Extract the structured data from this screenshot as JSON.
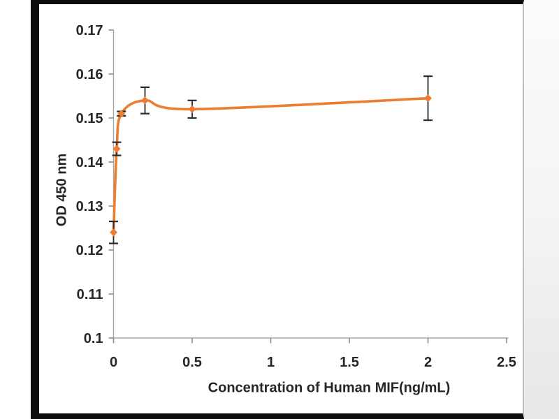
{
  "chart_data": {
    "type": "line",
    "xlabel": "Concentration of Human MIF(ng/mL)",
    "ylabel": "OD 450 nm",
    "xlim": [
      0,
      2.5
    ],
    "ylim": [
      0.1,
      0.17
    ],
    "x_ticks": [
      0,
      0.5,
      1,
      1.5,
      2,
      2.5
    ],
    "x_tick_labels": [
      "0",
      "0.5",
      "1",
      "1.5",
      "2",
      "2.5"
    ],
    "y_ticks": [
      0.1,
      0.11,
      0.12,
      0.13,
      0.14,
      0.15,
      0.16,
      0.17
    ],
    "y_tick_labels": [
      "0.1",
      "0.11",
      "0.12",
      "0.13",
      "0.14",
      "0.15",
      "0.16",
      "0.17"
    ],
    "grid": false,
    "legend": false,
    "series": [
      {
        "color": "#ED7D31",
        "marker": "diamond",
        "points": [
          {
            "x": 0,
            "y": 0.124,
            "err": 0.0025
          },
          {
            "x": 0.02,
            "y": 0.143,
            "err": 0.0015
          },
          {
            "x": 0.05,
            "y": 0.151,
            "err": 0.0005
          },
          {
            "x": 0.2,
            "y": 0.154,
            "err": 0.003
          },
          {
            "x": 0.5,
            "y": 0.152,
            "err": 0.002
          },
          {
            "x": 2,
            "y": 0.1545,
            "err": 0.005
          }
        ]
      }
    ],
    "colors": {
      "axis": "#a6a6a6",
      "tick": "#8c8c8c",
      "error_bar": "#2b2b2b",
      "text": "#262626",
      "frame": "#0d0d0d"
    }
  }
}
